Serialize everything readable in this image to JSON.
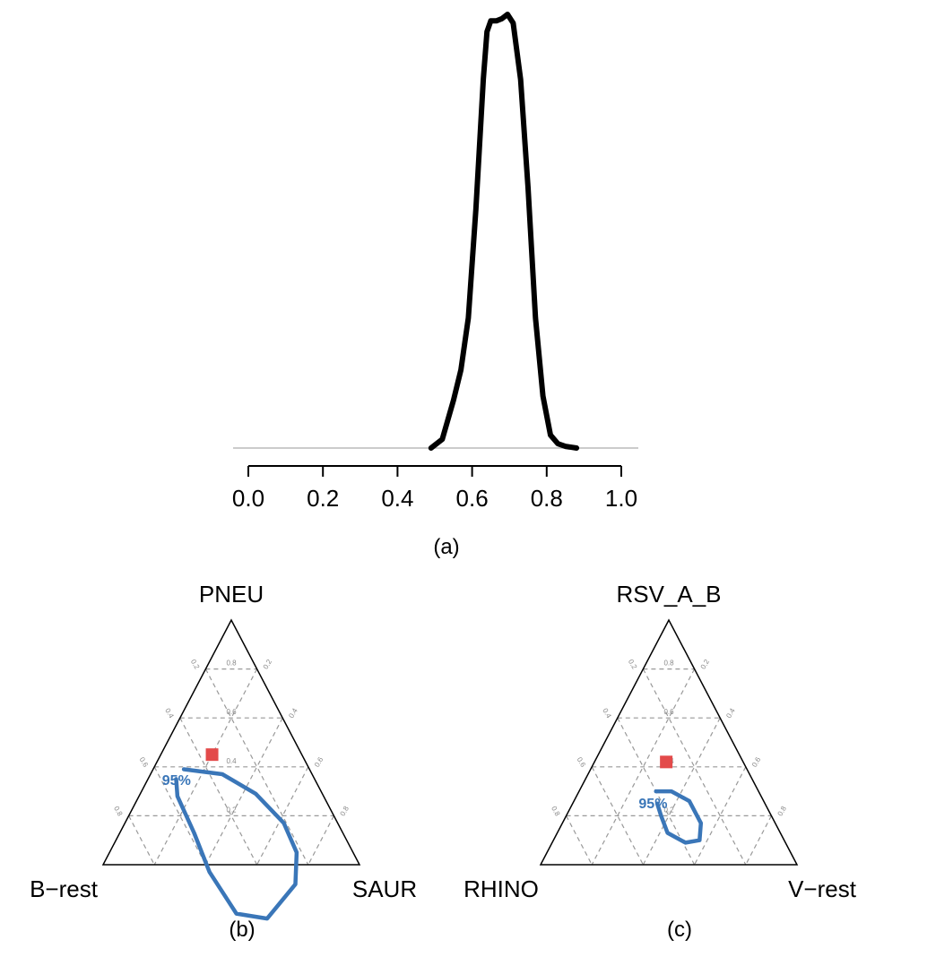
{
  "colors": {
    "density": "#000000",
    "baseline": "#bbbbbb",
    "contour": "#3a76b8",
    "point": "#e34a4a",
    "grid": "#999999",
    "triangle": "#000000"
  },
  "chart_data": [
    {
      "type": "line",
      "panel_label": "(a)",
      "xlim": [
        0.0,
        1.0
      ],
      "x_ticks": [
        "0.0",
        "0.2",
        "0.4",
        "0.6",
        "0.8",
        "1.0"
      ],
      "series": [
        {
          "x": [
            0.49,
            0.52,
            0.55,
            0.57,
            0.59,
            0.61,
            0.63,
            0.64,
            0.65,
            0.665,
            0.68,
            0.695,
            0.71,
            0.73,
            0.75,
            0.77,
            0.79,
            0.81,
            0.83,
            0.85,
            0.88
          ],
          "y": [
            0.0,
            0.02,
            0.11,
            0.18,
            0.3,
            0.55,
            0.85,
            0.96,
            0.985,
            0.985,
            0.99,
            1.0,
            0.98,
            0.85,
            0.6,
            0.3,
            0.12,
            0.03,
            0.01,
            0.004,
            0.0
          ]
        }
      ]
    },
    {
      "type": "ternary",
      "panel_label": "(b)",
      "vertices": [
        "PNEU",
        "B−rest",
        "SAUR"
      ],
      "grid_levels": [
        "0.2",
        "0.4",
        "0.6",
        "0.8"
      ],
      "point": {
        "PNEU": 0.45,
        "B-rest": 0.35,
        "SAUR": 0.2
      },
      "contour_label": "95%",
      "contour": [
        [
          0.12,
          0.49
        ],
        [
          0.28,
          0.35
        ],
        [
          0.45,
          0.26
        ],
        [
          0.62,
          0.21
        ],
        [
          0.73,
          0.22
        ],
        [
          0.79,
          0.29
        ],
        [
          0.75,
          0.47
        ],
        [
          0.62,
          0.58
        ],
        [
          0.43,
          0.6
        ],
        [
          0.29,
          0.58
        ],
        [
          0.15,
          0.57
        ],
        [
          0.11,
          0.54
        ]
      ]
    },
    {
      "type": "ternary",
      "panel_label": "(c)",
      "vertices": [
        "RSV_A_B",
        "RHINO",
        "V−rest"
      ],
      "grid_levels": [
        "0.2",
        "0.4",
        "0.6",
        "0.8"
      ],
      "point": {
        "RSV_A_B": 0.42,
        "RHINO": 0.3,
        "V-rest": 0.28
      },
      "contour_label": "95%",
      "contour": [
        [
          0.3,
          0.4
        ],
        [
          0.36,
          0.34
        ],
        [
          0.45,
          0.29
        ],
        [
          0.54,
          0.29
        ],
        [
          0.57,
          0.33
        ],
        [
          0.52,
          0.39
        ],
        [
          0.43,
          0.44
        ],
        [
          0.37,
          0.43
        ],
        [
          0.33,
          0.42
        ]
      ]
    }
  ]
}
